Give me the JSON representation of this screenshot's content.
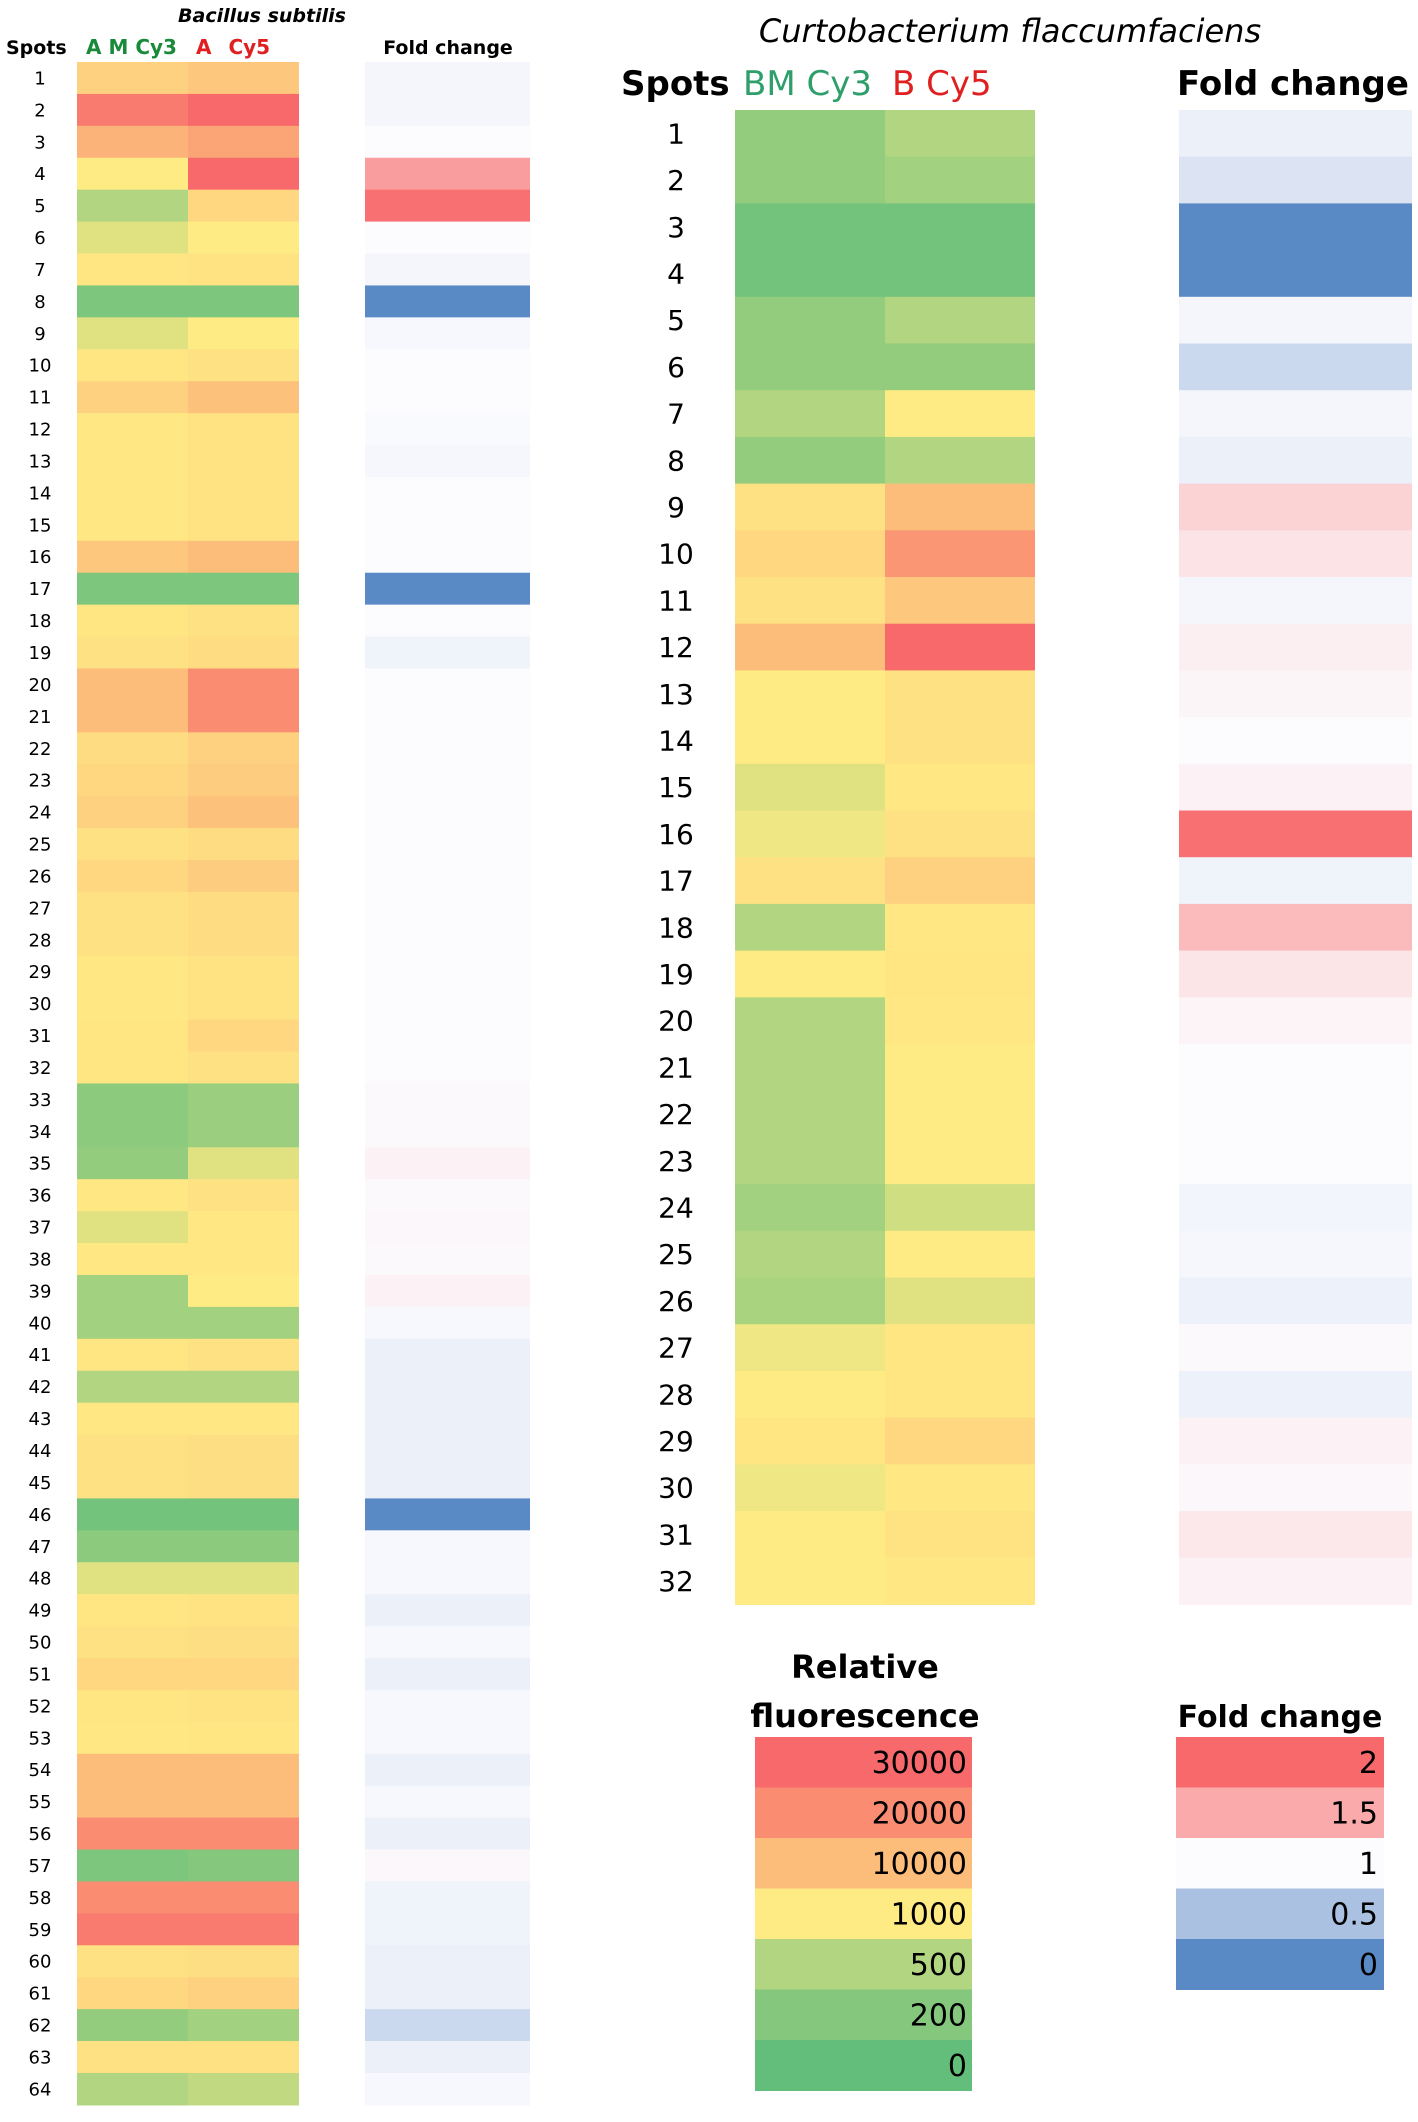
{
  "chart_data": [
    {
      "type": "heatmap",
      "title": "Bacillus subtilis",
      "row_header": "Spots",
      "columns": [
        {
          "prefix": "A",
          "label": "M Cy3",
          "prefix_color": "#1a8a3a",
          "label_color": "#1a8a3a"
        },
        {
          "prefix": "A",
          "label": "Cy5",
          "prefix_color": "#e02020",
          "label_color": "#e02020"
        }
      ],
      "fold_change_title": "Fold change",
      "rows": [
        "1",
        "2",
        "3",
        "4",
        "5",
        "6",
        "7",
        "8",
        "9",
        "10",
        "11",
        "12",
        "13",
        "14",
        "15",
        "16",
        "17",
        "18",
        "19",
        "20",
        "21",
        "22",
        "23",
        "24",
        "25",
        "26",
        "27",
        "28",
        "29",
        "30",
        "31",
        "32",
        "33",
        "34",
        "35",
        "36",
        "37",
        "38",
        "39",
        "40",
        "41",
        "42",
        "43",
        "44",
        "45",
        "46",
        "47",
        "48",
        "49",
        "50",
        "51",
        "52",
        "53",
        "54",
        "55",
        "56",
        "57",
        "58",
        "59",
        "60",
        "61",
        "62",
        "63",
        "64"
      ],
      "cy3": [
        6000,
        25000,
        12000,
        1000,
        500,
        800,
        2000,
        150,
        800,
        2000,
        6000,
        1500,
        1500,
        1500,
        1500,
        8000,
        150,
        2000,
        3000,
        10000,
        10000,
        4000,
        5000,
        6000,
        3000,
        5000,
        3000,
        3000,
        1500,
        1500,
        2000,
        2000,
        250,
        250,
        300,
        1500,
        800,
        1500,
        400,
        400,
        2000,
        500,
        1500,
        3000,
        3000,
        100,
        250,
        800,
        2000,
        3000,
        5000,
        2000,
        1500,
        10000,
        10000,
        20000,
        150,
        20000,
        25000,
        3000,
        5000,
        300,
        3000,
        500
      ],
      "cy5": [
        8000,
        30000,
        15000,
        30000,
        5000,
        1000,
        2500,
        150,
        1000,
        3000,
        9000,
        2500,
        2500,
        2500,
        2500,
        10000,
        150,
        3000,
        4000,
        20000,
        20000,
        6000,
        7000,
        9000,
        4000,
        7000,
        4000,
        4000,
        2500,
        2500,
        5000,
        3000,
        350,
        350,
        800,
        3000,
        1500,
        1500,
        1000,
        400,
        3000,
        500,
        1500,
        3500,
        3500,
        100,
        250,
        800,
        2500,
        3500,
        5000,
        2500,
        2000,
        10000,
        10000,
        20000,
        200,
        20000,
        25000,
        3500,
        6000,
        400,
        3000,
        600
      ],
      "fold_change": [
        0.95,
        0.95,
        1.0,
        1.6,
        1.95,
        1.0,
        0.95,
        0.0,
        0.97,
        1.0,
        1.0,
        0.98,
        0.96,
        1.0,
        1.0,
        1.0,
        0.0,
        1.0,
        0.92,
        1.0,
        1.0,
        1.0,
        1.0,
        1.0,
        1.0,
        1.0,
        1.0,
        1.0,
        1.0,
        1.0,
        1.0,
        1.0,
        1.02,
        1.02,
        1.06,
        1.02,
        1.03,
        1.02,
        1.06,
        0.97,
        0.9,
        0.9,
        0.9,
        0.9,
        0.9,
        0.0,
        0.97,
        0.97,
        0.9,
        0.97,
        0.9,
        0.97,
        0.97,
        0.9,
        0.97,
        0.9,
        1.03,
        0.92,
        0.92,
        0.9,
        0.9,
        0.7,
        0.9,
        0.97
      ]
    },
    {
      "type": "heatmap",
      "title": "Curtobacterium flaccumfaciens",
      "row_header": "Spots",
      "columns": [
        {
          "prefix": "BM",
          "label": "Cy3",
          "prefix_color": "#2e9e6a",
          "label_color": "#2e9e6a"
        },
        {
          "prefix": "B",
          "label": "Cy5",
          "prefix_color": "#e02020",
          "label_color": "#e02020"
        }
      ],
      "fold_change_title": "Fold change",
      "rows": [
        "1",
        "2",
        "3",
        "4",
        "5",
        "6",
        "7",
        "8",
        "9",
        "10",
        "11",
        "12",
        "13",
        "14",
        "15",
        "16",
        "17",
        "18",
        "19",
        "20",
        "21",
        "22",
        "23",
        "24",
        "25",
        "26",
        "27",
        "28",
        "29",
        "30",
        "31",
        "32"
      ],
      "cy3": [
        300,
        300,
        100,
        100,
        300,
        300,
        500,
        300,
        3000,
        5000,
        3000,
        10000,
        1000,
        1000,
        800,
        900,
        3000,
        500,
        1000,
        500,
        500,
        500,
        500,
        400,
        500,
        450,
        900,
        1000,
        2000,
        900,
        1000,
        1000
      ],
      "cy5": [
        500,
        400,
        100,
        100,
        500,
        300,
        1000,
        500,
        10000,
        18000,
        8000,
        30000,
        3000,
        3000,
        1500,
        3000,
        6000,
        1500,
        2000,
        1500,
        1000,
        1000,
        1000,
        700,
        1000,
        800,
        2000,
        2000,
        5000,
        1500,
        2500,
        1500
      ],
      "fold_change": [
        0.9,
        0.8,
        0.0,
        0.0,
        0.95,
        0.7,
        0.95,
        0.9,
        1.25,
        1.15,
        0.95,
        1.08,
        1.04,
        1.0,
        1.06,
        1.95,
        0.92,
        1.4,
        1.14,
        1.05,
        1.0,
        1.0,
        1.0,
        0.94,
        0.96,
        0.91,
        1.02,
        0.91,
        1.06,
        1.03,
        1.12,
        1.06
      ]
    }
  ],
  "legend_fluorescence": {
    "title_line1": "Relative",
    "title_line2": "fluorescence",
    "items": [
      {
        "label": "30000",
        "color": "#f8696b"
      },
      {
        "label": "20000",
        "color": "#fa8c72"
      },
      {
        "label": "10000",
        "color": "#fcbd7b"
      },
      {
        "label": "1000",
        "color": "#ffeb84"
      },
      {
        "label": "500",
        "color": "#b1d580"
      },
      {
        "label": "200",
        "color": "#85c87d"
      },
      {
        "label": "0",
        "color": "#63be7b"
      }
    ]
  },
  "legend_fold": {
    "title": "Fold change",
    "items": [
      {
        "label": "2",
        "color": "#f8696b"
      },
      {
        "label": "1.5",
        "color": "#fbaaab"
      },
      {
        "label": "1",
        "color": "#fcfcff"
      },
      {
        "label": "0.5",
        "color": "#abc1e2"
      },
      {
        "label": "0",
        "color": "#5a8ac6"
      }
    ]
  }
}
